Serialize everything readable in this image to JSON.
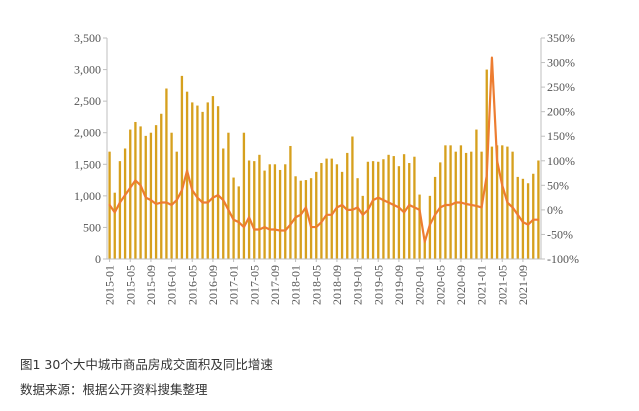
{
  "caption": {
    "title": "图1 30个大中城市商品房成交面积及同比增速",
    "source": "数据来源：根据公开资料搜集整理"
  },
  "chart_data": {
    "type": "bar+line",
    "title": "图1 30个大中城市商品房成交面积及同比增速",
    "categories": [
      "2015-01",
      "2015-02",
      "2015-03",
      "2015-04",
      "2015-05",
      "2015-06",
      "2015-07",
      "2015-08",
      "2015-09",
      "2015-10",
      "2015-11",
      "2015-12",
      "2016-01",
      "2016-02",
      "2016-03",
      "2016-04",
      "2016-05",
      "2016-06",
      "2016-07",
      "2016-08",
      "2016-09",
      "2016-10",
      "2016-11",
      "2016-12",
      "2017-01",
      "2017-02",
      "2017-03",
      "2017-04",
      "2017-05",
      "2017-06",
      "2017-07",
      "2017-08",
      "2017-09",
      "2017-10",
      "2017-11",
      "2017-12",
      "2018-01",
      "2018-02",
      "2018-03",
      "2018-04",
      "2018-05",
      "2018-06",
      "2018-07",
      "2018-08",
      "2018-09",
      "2018-10",
      "2018-11",
      "2018-12",
      "2019-01",
      "2019-02",
      "2019-03",
      "2019-04",
      "2019-05",
      "2019-06",
      "2019-07",
      "2019-08",
      "2019-09",
      "2019-10",
      "2019-11",
      "2019-12",
      "2020-01",
      "2020-02",
      "2020-03",
      "2020-04",
      "2020-05",
      "2020-06",
      "2020-07",
      "2020-08",
      "2020-09",
      "2020-10",
      "2020-11",
      "2020-12",
      "2021-01",
      "2021-02",
      "2021-03",
      "2021-04",
      "2021-05",
      "2021-06",
      "2021-07",
      "2021-08",
      "2021-09",
      "2021-10",
      "2021-11",
      "2021-12"
    ],
    "x_tick_labels": [
      "2015-01",
      "2015-05",
      "2015-09",
      "2016-01",
      "2016-05",
      "2016-09",
      "2017-01",
      "2017-05",
      "2017-09",
      "2018-01",
      "2018-05",
      "2018-09",
      "2019-01",
      "2019-05",
      "2019-09",
      "2020-01",
      "2020-05",
      "2020-09",
      "2021-01",
      "2021-05",
      "2021-09"
    ],
    "series": [
      {
        "axis": "left",
        "kind": "bar",
        "values": [
          1700,
          1050,
          1550,
          1750,
          2050,
          2170,
          2100,
          1950,
          2000,
          2120,
          2300,
          2700,
          2000,
          1700,
          2900,
          2650,
          2480,
          2430,
          2330,
          2480,
          2580,
          2420,
          1750,
          2000,
          1290,
          1150,
          2000,
          1560,
          1550,
          1650,
          1400,
          1500,
          1500,
          1410,
          1500,
          1790,
          1310,
          1240,
          1250,
          1280,
          1380,
          1520,
          1590,
          1590,
          1500,
          1380,
          1680,
          1940,
          1280,
          1000,
          1540,
          1550,
          1540,
          1580,
          1650,
          1630,
          1470,
          1660,
          1520,
          1620,
          1020,
          300,
          1000,
          1300,
          1530,
          1800,
          1800,
          1700,
          1800,
          1680,
          1700,
          2050,
          1700,
          3000,
          1780,
          1800,
          1800,
          1780,
          1700,
          1300,
          1270,
          1200,
          1350,
          1560
        ]
      },
      {
        "axis": "right",
        "kind": "line",
        "unit": "%",
        "values": [
          10,
          -5,
          15,
          30,
          45,
          60,
          50,
          25,
          20,
          12,
          15,
          15,
          10,
          20,
          40,
          80,
          40,
          25,
          15,
          15,
          25,
          30,
          20,
          0,
          -20,
          -25,
          -35,
          -15,
          -40,
          -40,
          -35,
          -40,
          -40,
          -42,
          -42,
          -30,
          -15,
          -10,
          5,
          -35,
          -35,
          -25,
          -10,
          -10,
          5,
          10,
          0,
          0,
          5,
          -10,
          0,
          20,
          25,
          20,
          15,
          10,
          5,
          -5,
          10,
          5,
          0,
          -65,
          -30,
          -10,
          5,
          10,
          10,
          15,
          15,
          12,
          10,
          8,
          5,
          70,
          310,
          100,
          50,
          15,
          5,
          -10,
          -25,
          -30,
          -20,
          -20
        ]
      }
    ],
    "y_left": {
      "ylim": [
        0,
        3500
      ],
      "ticks": [
        0,
        500,
        1000,
        1500,
        2000,
        2500,
        3000,
        3500
      ],
      "tick_labels": [
        "0",
        "500",
        "1,000",
        "1,500",
        "2,000",
        "2,500",
        "3,000",
        "3,500"
      ]
    },
    "y_right": {
      "ylim": [
        -100,
        350
      ],
      "ticks": [
        -100,
        -50,
        0,
        50,
        100,
        150,
        200,
        250,
        300,
        350
      ],
      "tick_labels": [
        "-100%",
        "-50%",
        "0%",
        "50%",
        "100%",
        "150%",
        "200%",
        "250%",
        "300%",
        "350%"
      ]
    },
    "colors": {
      "bar": "#D6A01E",
      "line": "#ED7D31",
      "axis": "#bfbfbf",
      "text": "#555555"
    },
    "grid": false,
    "legend": "none"
  }
}
